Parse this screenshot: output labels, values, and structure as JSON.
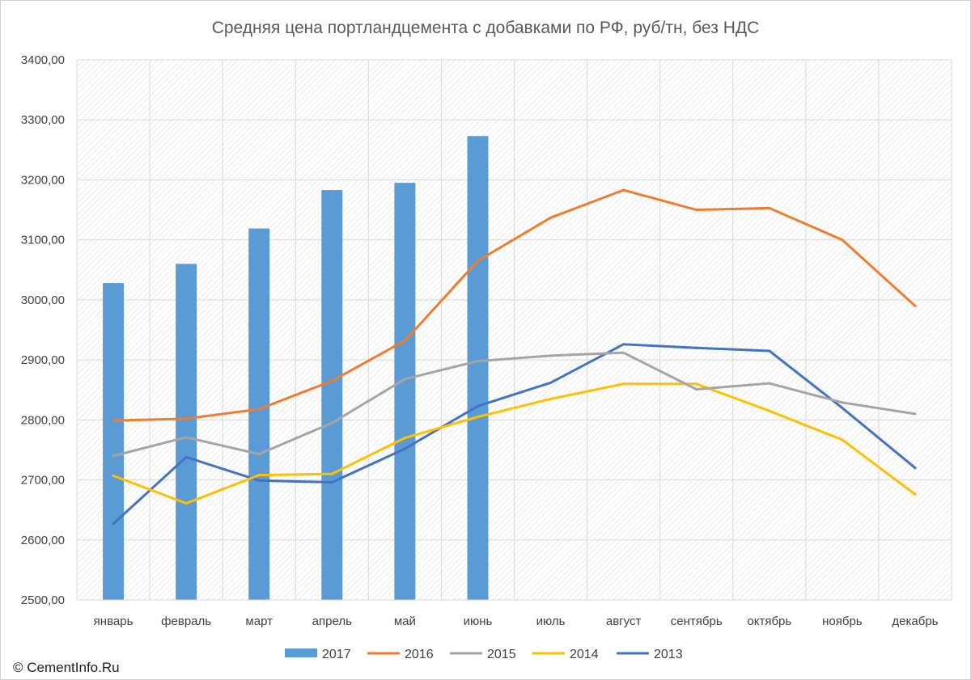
{
  "chart_data": {
    "type": "bar",
    "title": "Средняя цена портландцемента с добавками по РФ, руб/тн, без НДС",
    "xlabel": "",
    "ylabel": "",
    "ylim": [
      2500,
      3400
    ],
    "y_ticks": [
      "2500,00",
      "2600,00",
      "2700,00",
      "2800,00",
      "2900,00",
      "3000,00",
      "3100,00",
      "3200,00",
      "3300,00",
      "3400,00"
    ],
    "grid": true,
    "legend_position": "bottom",
    "categories": [
      "январь",
      "февраль",
      "март",
      "апрель",
      "май",
      "июнь",
      "июль",
      "август",
      "сентябрь",
      "октябрь",
      "ноябрь",
      "декабрь"
    ],
    "series": [
      {
        "name": "2017",
        "kind": "bar",
        "color": "#5b9bd5",
        "values": [
          3028,
          3060,
          3119,
          3183,
          3195,
          3273,
          null,
          null,
          null,
          null,
          null,
          null
        ]
      },
      {
        "name": "2016",
        "kind": "line",
        "color": "#ed7d31",
        "values": [
          2799,
          2802,
          2818,
          2865,
          2932,
          3065,
          3137,
          3183,
          3150,
          3153,
          3100,
          2990
        ]
      },
      {
        "name": "2015",
        "kind": "line",
        "color": "#a5a5a5",
        "values": [
          2740,
          2771,
          2743,
          2795,
          2868,
          2898,
          2907,
          2912,
          2851,
          2861,
          2829,
          2810
        ]
      },
      {
        "name": "2014",
        "kind": "line",
        "color": "#ffc000",
        "values": [
          2707,
          2661,
          2708,
          2710,
          2770,
          2805,
          2835,
          2860,
          2860,
          2815,
          2767,
          2676
        ]
      },
      {
        "name": "2013",
        "kind": "line",
        "color": "#4472c4",
        "values": [
          2627,
          2738,
          2699,
          2696,
          2752,
          2823,
          2862,
          2926,
          2920,
          2915,
          2820,
          2720
        ]
      }
    ]
  },
  "footer": {
    "copyright": "© CementInfo.Ru"
  }
}
